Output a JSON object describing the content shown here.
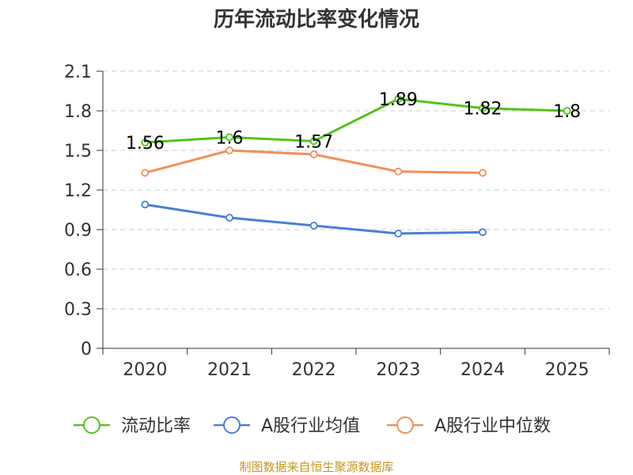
{
  "chart_data": {
    "type": "line",
    "title": "历年流动比率变化情况",
    "categories": [
      "2020",
      "2021",
      "2022",
      "2023",
      "2024",
      "2025"
    ],
    "ylim": [
      0,
      2.1
    ],
    "yticks": [
      "0",
      "0.3",
      "0.6",
      "0.9",
      "1.2",
      "1.5",
      "1.8",
      "2.1"
    ],
    "grid": true,
    "legend_position": "bottom",
    "series": [
      {
        "name": "流动比率",
        "color": "#52c41a",
        "values": [
          1.56,
          1.6,
          1.57,
          1.89,
          1.82,
          1.8
        ],
        "labels": [
          "1.56",
          "1.6",
          "1.57",
          "1.89",
          "1.82",
          "1.8"
        ]
      },
      {
        "name": "A股行业均值",
        "color": "#4a7fd6",
        "values": [
          1.09,
          0.99,
          0.93,
          0.87,
          0.88,
          null
        ]
      },
      {
        "name": "A股行业中位数",
        "color": "#f0905a",
        "values": [
          1.33,
          1.5,
          1.47,
          1.34,
          1.33,
          null
        ]
      }
    ]
  },
  "source": "制图数据来自恒生聚源数据库"
}
